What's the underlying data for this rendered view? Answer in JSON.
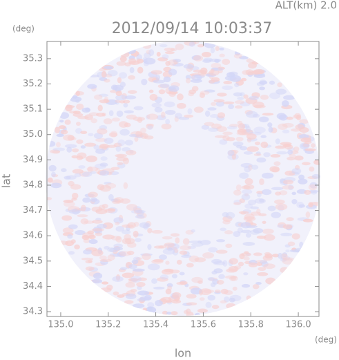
{
  "chart_data": {
    "type": "radar-image",
    "title": "2012/09/14 10:03:37",
    "annotation": "ALT(km)  2.0",
    "y_unit": "(deg)",
    "x_unit": "(deg)",
    "xlabel": "lon",
    "ylabel": "lat",
    "xlim": [
      134.942,
      136.087
    ],
    "ylim": [
      34.281,
      35.368
    ],
    "xticks": [
      {
        "value": 135,
        "label": "135.0"
      },
      135.2,
      135.4,
      135.6,
      135.8,
      {
        "value": 136,
        "label": "136.0"
      }
    ],
    "yticks": [
      34.3,
      34.4,
      34.5,
      34.6,
      34.7,
      34.8,
      34.9,
      {
        "value": 35,
        "label": "35.0"
      },
      35.1,
      35.2,
      35.3
    ]
  }
}
